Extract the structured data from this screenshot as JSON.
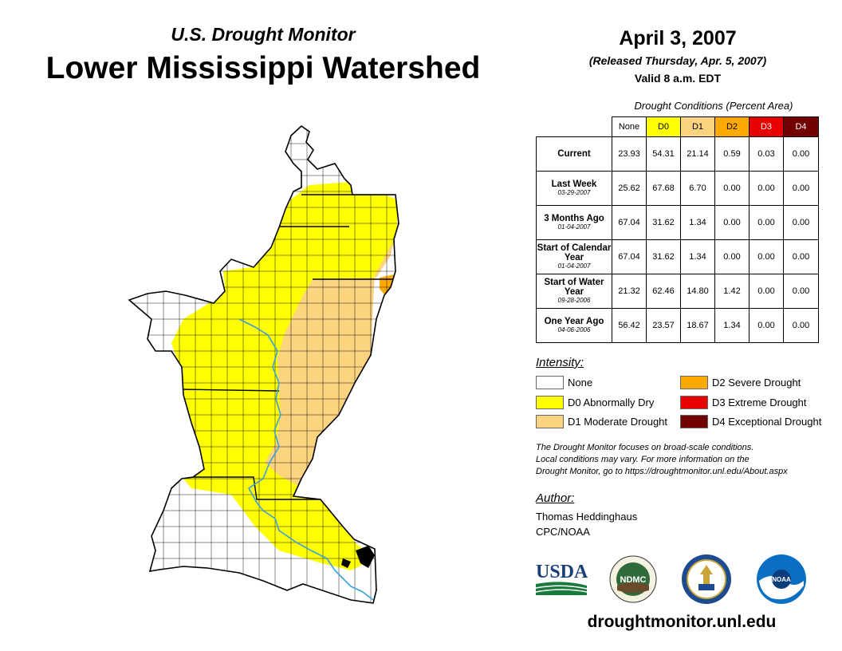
{
  "header": {
    "subtitle": "U.S. Drought Monitor",
    "title": "Lower Mississippi Watershed",
    "date": "April 3, 2007",
    "released": "(Released Thursday, Apr. 5, 2007)",
    "valid": "Valid 8 a.m. EDT"
  },
  "table": {
    "caption": "Drought Conditions (Percent Area)",
    "columns": [
      {
        "label": "None",
        "color": "#ffffff",
        "text": "#000000"
      },
      {
        "label": "D0",
        "color": "#ffff00",
        "text": "#000000"
      },
      {
        "label": "D1",
        "color": "#fcd37f",
        "text": "#000000"
      },
      {
        "label": "D2",
        "color": "#ffaa00",
        "text": "#000000"
      },
      {
        "label": "D3",
        "color": "#e60000",
        "text": "#ffffff"
      },
      {
        "label": "D4",
        "color": "#730000",
        "text": "#ffffff"
      }
    ],
    "rows": [
      {
        "label": "Current",
        "sublabel": "",
        "values": [
          "23.93",
          "54.31",
          "21.14",
          "0.59",
          "0.03",
          "0.00"
        ]
      },
      {
        "label": "Last Week",
        "sublabel": "03-29-2007",
        "values": [
          "25.62",
          "67.68",
          "6.70",
          "0.00",
          "0.00",
          "0.00"
        ]
      },
      {
        "label": "3 Months Ago",
        "sublabel": "01-04-2007",
        "values": [
          "67.04",
          "31.62",
          "1.34",
          "0.00",
          "0.00",
          "0.00"
        ]
      },
      {
        "label": "Start of Calendar Year",
        "sublabel": "01-04-2007",
        "values": [
          "67.04",
          "31.62",
          "1.34",
          "0.00",
          "0.00",
          "0.00"
        ]
      },
      {
        "label": "Start of Water Year",
        "sublabel": "09-28-2006",
        "values": [
          "21.32",
          "62.46",
          "14.80",
          "1.42",
          "0.00",
          "0.00"
        ]
      },
      {
        "label": "One Year Ago",
        "sublabel": "04-06-2006",
        "values": [
          "56.42",
          "23.57",
          "18.67",
          "1.34",
          "0.00",
          "0.00"
        ]
      }
    ]
  },
  "legend": {
    "title": "Intensity:",
    "items": [
      {
        "label": "None",
        "color": "#ffffff"
      },
      {
        "label": "D0 Abnormally Dry",
        "color": "#ffff00"
      },
      {
        "label": "D1 Moderate Drought",
        "color": "#fcd37f"
      },
      {
        "label": "D2 Severe Drought",
        "color": "#ffaa00"
      },
      {
        "label": "D3 Extreme Drought",
        "color": "#e60000"
      },
      {
        "label": "D4 Exceptional Drought",
        "color": "#730000"
      }
    ]
  },
  "note": {
    "line1": "The Drought Monitor focuses on broad-scale conditions.",
    "line2": "Local conditions may vary. For more information on the",
    "line3": "Drought Monitor, go to https://droughtmonitor.unl.edu/About.aspx"
  },
  "author": {
    "title": "Author:",
    "name": "Thomas Heddinghaus",
    "org": "CPC/NOAA"
  },
  "logos": {
    "usda": "USDA",
    "ndmc": "NDMC",
    "noaa": "NOAA"
  },
  "footer": {
    "url": "droughtmonitor.unl.edu"
  },
  "map": {
    "region": "Lower Mississippi Watershed",
    "colors": {
      "none": "#ffffff",
      "d0": "#ffff00",
      "d1": "#fcd37f",
      "d2": "#ffaa00",
      "river": "#3aa0e0"
    }
  }
}
